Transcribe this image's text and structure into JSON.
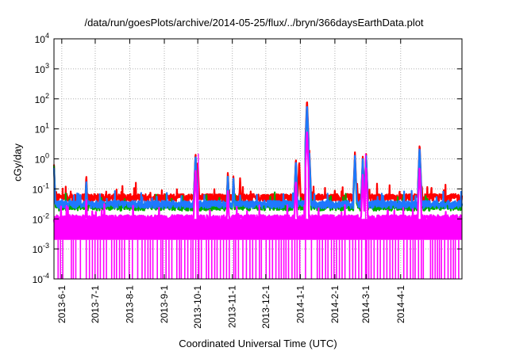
{
  "chart_data": {
    "type": "line",
    "title": "/data/run/goesPlots/archive/2014-05-25/flux/../bryn/366daysEarthData.plot",
    "xlabel": "Coordinated Universal Time (UTC)",
    "ylabel": "cGy/day",
    "xlim": [
      "2013-05-25",
      "2014-05-26"
    ],
    "ylim": [
      0.0001,
      10000
    ],
    "yscale": "log",
    "grid": true,
    "x_ticks": [
      "2013-6-1",
      "2013-7-1",
      "2013-8-1",
      "2013-9-1",
      "2013-10-1",
      "2013-11-1",
      "2013-12-1",
      "2014-1-1",
      "2014-2-1",
      "2014-3-1",
      "2014-4-1"
    ],
    "y_ticks": [
      {
        "value": 0.0001,
        "base": "10",
        "exp": "-4"
      },
      {
        "value": 0.001,
        "base": "10",
        "exp": "-3"
      },
      {
        "value": 0.01,
        "base": "10",
        "exp": "-2"
      },
      {
        "value": 0.1,
        "base": "10",
        "exp": "-1"
      },
      {
        "value": 1,
        "base": "10",
        "exp": "0"
      },
      {
        "value": 10,
        "base": "10",
        "exp": "1"
      },
      {
        "value": 100,
        "base": "10",
        "exp": "2"
      },
      {
        "value": 1000,
        "base": "10",
        "exp": "3"
      },
      {
        "value": 10000,
        "base": "10",
        "exp": "4"
      }
    ],
    "series": [
      {
        "color": "#ff0000",
        "baseline": 0.05,
        "points": [
          [
            "2013-05-25",
            0.65
          ],
          [
            "2013-05-27",
            0.08
          ],
          [
            "2013-06-23",
            0.3
          ],
          [
            "2013-06-25",
            0.07
          ],
          [
            "2013-09-01",
            0.07
          ],
          [
            "2013-09-29",
            1.7
          ],
          [
            "2013-10-01",
            0.9
          ],
          [
            "2013-10-03",
            0.07
          ],
          [
            "2013-10-28",
            0.4
          ],
          [
            "2013-11-02",
            0.3
          ],
          [
            "2013-11-08",
            0.25
          ],
          [
            "2013-11-12",
            0.07
          ],
          [
            "2013-12-28",
            1.1
          ],
          [
            "2013-12-31",
            0.9
          ],
          [
            "2014-01-07",
            100
          ],
          [
            "2014-01-09",
            2.5
          ],
          [
            "2014-01-12",
            0.1
          ],
          [
            "2014-02-01",
            0.1
          ],
          [
            "2014-02-19",
            1.7
          ],
          [
            "2014-02-21",
            0.15
          ],
          [
            "2014-02-26",
            1.2
          ],
          [
            "2014-03-01",
            1.5
          ],
          [
            "2014-03-04",
            0.1
          ],
          [
            "2014-03-31",
            0.1
          ],
          [
            "2014-04-18",
            3.3
          ],
          [
            "2014-04-20",
            0.15
          ],
          [
            "2014-05-25",
            0.06
          ]
        ]
      },
      {
        "color": "#00aa00",
        "baseline": 0.025,
        "points": [
          [
            "2013-05-25",
            0.6
          ],
          [
            "2013-06-23",
            0.18
          ],
          [
            "2013-09-29",
            1.3
          ],
          [
            "2013-10-28",
            0.3
          ],
          [
            "2013-11-02",
            0.22
          ],
          [
            "2013-12-28",
            0.8
          ],
          [
            "2014-01-07",
            60
          ],
          [
            "2014-01-09",
            1.5
          ],
          [
            "2014-02-19",
            1.1
          ],
          [
            "2014-02-26",
            0.9
          ],
          [
            "2014-03-01",
            1.1
          ],
          [
            "2014-04-18",
            2.2
          ]
        ]
      },
      {
        "color": "#1e78ff",
        "baseline": 0.03,
        "points": [
          [
            "2013-05-25",
            0.5
          ],
          [
            "2013-06-23",
            0.2
          ],
          [
            "2013-09-29",
            1.4
          ],
          [
            "2013-10-28",
            0.3
          ],
          [
            "2013-11-02",
            0.25
          ],
          [
            "2013-12-28",
            0.9
          ],
          [
            "2014-01-07",
            70
          ],
          [
            "2014-01-09",
            2
          ],
          [
            "2014-02-19",
            1.3
          ],
          [
            "2014-02-26",
            1
          ],
          [
            "2014-03-01",
            1.3
          ],
          [
            "2014-04-18",
            2.6
          ]
        ]
      },
      {
        "color": "#ff00ff",
        "baseline": 0.01,
        "floor": 0.002,
        "points": [
          [
            "2013-06-23",
            0.05
          ],
          [
            "2013-09-29",
            0.5
          ],
          [
            "2013-10-28",
            0.1
          ],
          [
            "2013-12-28",
            0.2
          ],
          [
            "2014-01-07",
            10
          ],
          [
            "2014-02-26",
            0.3
          ],
          [
            "2014-03-01",
            0.5
          ],
          [
            "2014-04-18",
            0.6
          ]
        ]
      }
    ],
    "dropouts": [
      "2013-10-01",
      "2013-10-02",
      "2014-02-28",
      "2014-03-01"
    ]
  }
}
